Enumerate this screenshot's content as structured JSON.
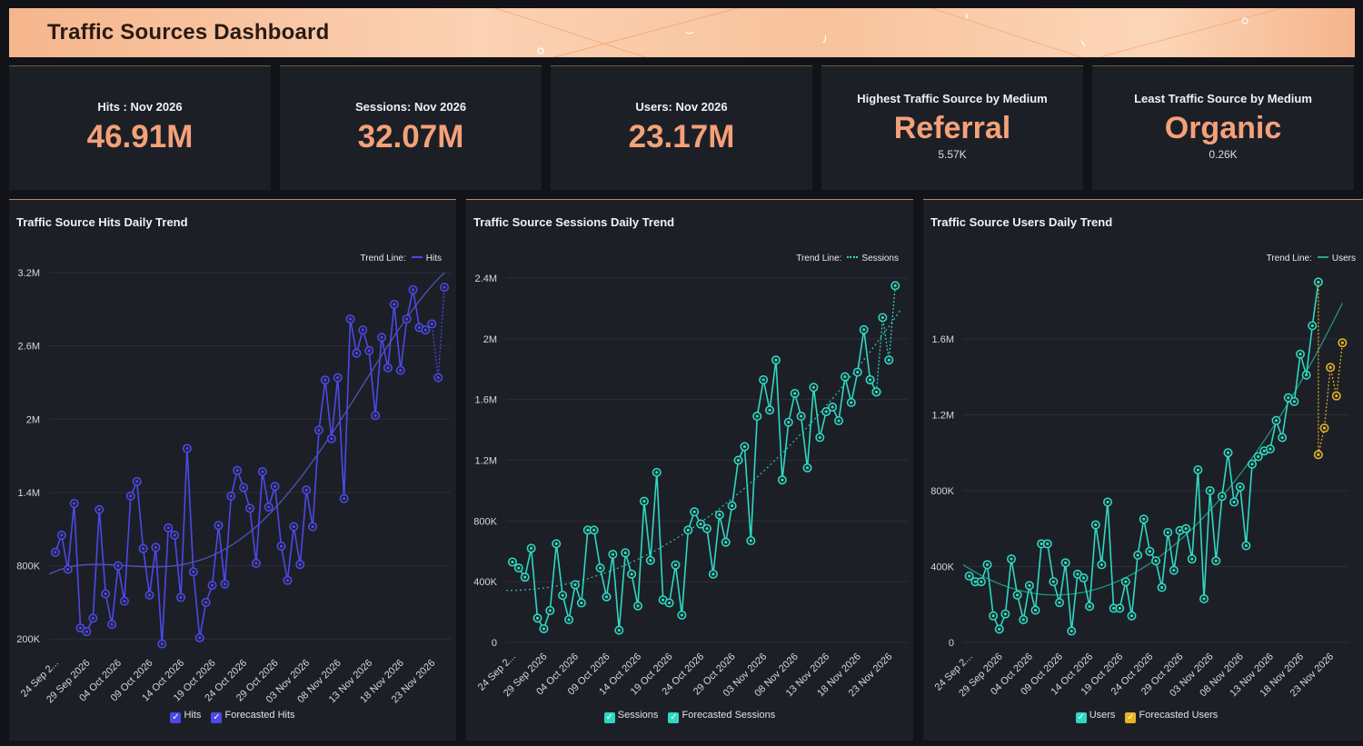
{
  "header": {
    "title": "Traffic Sources Dashboard"
  },
  "kpis": [
    {
      "label": "Hits : Nov 2026",
      "value": "46.91M"
    },
    {
      "label": "Sessions: Nov 2026",
      "value": "32.07M"
    },
    {
      "label": "Users: Nov 2026",
      "value": "23.17M"
    },
    {
      "label": "Highest Traffic Source by Medium",
      "value": "Referral",
      "sub": "5.57K"
    },
    {
      "label": "Least Traffic Source by Medium",
      "value": "Organic",
      "sub": "0.26K"
    }
  ],
  "colors": {
    "accent": "#f4a178",
    "hits": "#4b49e8",
    "sessions": "#2ed8c0",
    "users": "#2ed8c0",
    "forecast_users": "#e8b422",
    "users_trend": "#1fa98f",
    "background": "#121318",
    "panel": "#1d1f27",
    "grid": "#2b2e38"
  },
  "panels": [
    {
      "title": "Traffic Source Hits Daily Trend",
      "trend_line_label": "Trend Line:",
      "trend_series_label": "Hits",
      "legend": [
        "Hits",
        "Forecasted Hits"
      ]
    },
    {
      "title": "Traffic Source Sessions Daily Trend",
      "trend_line_label": "Trend Line:",
      "trend_series_label": "Sessions",
      "legend": [
        "Sessions",
        "Forecasted Sessions"
      ]
    },
    {
      "title": "Traffic Source Users Daily Trend",
      "trend_line_label": "Trend Line:",
      "trend_series_label": "Users",
      "legend": [
        "Users",
        "Forecasted Users"
      ]
    }
  ],
  "chart_data": [
    {
      "type": "line",
      "title": "Traffic Source Hits Daily Trend",
      "x_tick_labels": [
        "24 Sep 2...",
        "29 Sep 2026",
        "04 Oct 2026",
        "09 Oct 2026",
        "14 Oct 2026",
        "19 Oct 2026",
        "24 Oct 2026",
        "29 Oct 2026",
        "03 Nov 2026",
        "08 Nov 2026",
        "13 Nov 2026",
        "18 Nov 2026",
        "23 Nov 2026"
      ],
      "y_ticks": [
        "200K",
        "800K",
        "1.4M",
        "2M",
        "2.6M",
        "3.2M"
      ],
      "y_tick_values": [
        200000,
        800000,
        1400000,
        2000000,
        2600000,
        3200000
      ],
      "ylim": [
        120000,
        3200000
      ],
      "x_start": "2026-09-24",
      "x_end": "2026-11-27",
      "series": [
        {
          "name": "Hits",
          "dates": [
            "2026-09-25",
            "2026-09-26",
            "2026-09-27",
            "2026-09-28",
            "2026-09-29",
            "2026-09-30",
            "2026-10-01",
            "2026-10-02",
            "2026-10-03",
            "2026-10-04",
            "2026-10-05",
            "2026-10-06",
            "2026-10-07",
            "2026-10-08",
            "2026-10-09",
            "2026-10-10",
            "2026-10-11",
            "2026-10-12",
            "2026-10-13",
            "2026-10-14",
            "2026-10-15",
            "2026-10-16",
            "2026-10-17",
            "2026-10-18",
            "2026-10-19",
            "2026-10-20",
            "2026-10-21",
            "2026-10-22",
            "2026-10-23",
            "2026-10-24",
            "2026-10-25",
            "2026-10-26",
            "2026-10-27",
            "2026-10-28",
            "2026-10-29",
            "2026-10-30",
            "2026-10-31",
            "2026-11-01",
            "2026-11-02",
            "2026-11-03",
            "2026-11-04",
            "2026-11-05",
            "2026-11-06",
            "2026-11-07",
            "2026-11-08",
            "2026-11-09",
            "2026-11-10",
            "2026-11-11",
            "2026-11-12",
            "2026-11-13",
            "2026-11-14",
            "2026-11-15",
            "2026-11-16",
            "2026-11-17",
            "2026-11-18",
            "2026-11-19",
            "2026-11-20",
            "2026-11-21",
            "2026-11-22"
          ],
          "values": [
            910000,
            1050000,
            770000,
            1310000,
            290000,
            260000,
            370000,
            1260000,
            570000,
            320000,
            800000,
            510000,
            1370000,
            1490000,
            940000,
            560000,
            950000,
            160000,
            1110000,
            1050000,
            540000,
            1760000,
            750000,
            210000,
            500000,
            640000,
            1130000,
            650000,
            1370000,
            1580000,
            1440000,
            1270000,
            820000,
            1570000,
            1280000,
            1450000,
            960000,
            680000,
            1120000,
            810000,
            1420000,
            1120000,
            1910000,
            2320000,
            1840000,
            2340000,
            1350000,
            2820000,
            2540000,
            2730000,
            2560000,
            2030000,
            2670000,
            2420000,
            2940000,
            2400000,
            2820000,
            3060000,
            2750000
          ]
        },
        {
          "name": "Forecasted Hits",
          "dates": [
            "2026-11-22",
            "2026-11-23",
            "2026-11-24",
            "2026-11-25",
            "2026-11-26"
          ],
          "values": [
            2750000,
            2730000,
            2780000,
            2340000,
            3080000
          ]
        }
      ],
      "trend_line": "Hits"
    },
    {
      "type": "line",
      "title": "Traffic Source Sessions Daily Trend",
      "x_tick_labels": [
        "24 Sep 2...",
        "29 Sep 2026",
        "04 Oct 2026",
        "09 Oct 2026",
        "14 Oct 2026",
        "19 Oct 2026",
        "24 Oct 2026",
        "29 Oct 2026",
        "03 Nov 2026",
        "08 Nov 2026",
        "13 Nov 2026",
        "18 Nov 2026",
        "23 Nov 2026"
      ],
      "y_ticks": [
        "0",
        "400K",
        "800K",
        "1.2M",
        "1.6M",
        "2M",
        "2.4M"
      ],
      "y_tick_values": [
        0,
        400000,
        800000,
        1200000,
        1600000,
        2000000,
        2400000
      ],
      "ylim": [
        0,
        2400000
      ],
      "x_start": "2026-09-24",
      "x_end": "2026-11-27",
      "series": [
        {
          "name": "Sessions",
          "dates": [
            "2026-09-25",
            "2026-09-26",
            "2026-09-27",
            "2026-09-28",
            "2026-09-29",
            "2026-09-30",
            "2026-10-01",
            "2026-10-02",
            "2026-10-03",
            "2026-10-04",
            "2026-10-05",
            "2026-10-06",
            "2026-10-07",
            "2026-10-08",
            "2026-10-09",
            "2026-10-10",
            "2026-10-11",
            "2026-10-12",
            "2026-10-13",
            "2026-10-14",
            "2026-10-15",
            "2026-10-16",
            "2026-10-17",
            "2026-10-18",
            "2026-10-19",
            "2026-10-20",
            "2026-10-21",
            "2026-10-22",
            "2026-10-23",
            "2026-10-24",
            "2026-10-25",
            "2026-10-26",
            "2026-10-27",
            "2026-10-28",
            "2026-10-29",
            "2026-10-30",
            "2026-10-31",
            "2026-11-01",
            "2026-11-02",
            "2026-11-03",
            "2026-11-04",
            "2026-11-05",
            "2026-11-06",
            "2026-11-07",
            "2026-11-08",
            "2026-11-09",
            "2026-11-10",
            "2026-11-11",
            "2026-11-12",
            "2026-11-13",
            "2026-11-14",
            "2026-11-15",
            "2026-11-16",
            "2026-11-17",
            "2026-11-18",
            "2026-11-19",
            "2026-11-20",
            "2026-11-21",
            "2026-11-22"
          ],
          "values": [
            530000,
            490000,
            430000,
            620000,
            160000,
            90000,
            210000,
            650000,
            310000,
            150000,
            380000,
            260000,
            740000,
            740000,
            490000,
            300000,
            580000,
            80000,
            590000,
            450000,
            240000,
            930000,
            540000,
            1120000,
            280000,
            260000,
            510000,
            180000,
            740000,
            860000,
            780000,
            750000,
            450000,
            840000,
            660000,
            900000,
            1200000,
            1290000,
            670000,
            1490000,
            1730000,
            1530000,
            1860000,
            1070000,
            1450000,
            1640000,
            1490000,
            1150000,
            1680000,
            1350000,
            1520000,
            1550000,
            1460000,
            1750000,
            1580000,
            1780000,
            2060000,
            1730000,
            1650000
          ]
        },
        {
          "name": "Forecasted Sessions",
          "dates": [
            "2026-11-21",
            "2026-11-22",
            "2026-11-23",
            "2026-11-24",
            "2026-11-25"
          ],
          "values": [
            1730000,
            1650000,
            2140000,
            1860000,
            2350000
          ]
        }
      ],
      "trend_line": "Sessions"
    },
    {
      "type": "line",
      "title": "Traffic Source Users Daily Trend",
      "x_tick_labels": [
        "24 Sep 2...",
        "29 Sep 2026",
        "04 Oct 2026",
        "09 Oct 2026",
        "14 Oct 2026",
        "19 Oct 2026",
        "24 Oct 2026",
        "29 Oct 2026",
        "03 Nov 2026",
        "08 Nov 2026",
        "13 Nov 2026",
        "18 Nov 2026",
        "23 Nov 2026"
      ],
      "y_ticks": [
        "0",
        "400K",
        "800K",
        "1.2M",
        "1.6M"
      ],
      "y_tick_values": [
        0,
        400000,
        800000,
        1200000,
        1600000
      ],
      "ylim": [
        0,
        1950000
      ],
      "x_start": "2026-09-24",
      "x_end": "2026-11-27",
      "series": [
        {
          "name": "Users",
          "dates": [
            "2026-09-25",
            "2026-09-26",
            "2026-09-27",
            "2026-09-28",
            "2026-09-29",
            "2026-09-30",
            "2026-10-01",
            "2026-10-02",
            "2026-10-03",
            "2026-10-04",
            "2026-10-05",
            "2026-10-06",
            "2026-10-07",
            "2026-10-08",
            "2026-10-09",
            "2026-10-10",
            "2026-10-11",
            "2026-10-12",
            "2026-10-13",
            "2026-10-14",
            "2026-10-15",
            "2026-10-16",
            "2026-10-17",
            "2026-10-18",
            "2026-10-19",
            "2026-10-20",
            "2026-10-21",
            "2026-10-22",
            "2026-10-23",
            "2026-10-24",
            "2026-10-25",
            "2026-10-26",
            "2026-10-27",
            "2026-10-28",
            "2026-10-29",
            "2026-10-30",
            "2026-10-31",
            "2026-11-01",
            "2026-11-02",
            "2026-11-03",
            "2026-11-04",
            "2026-11-05",
            "2026-11-06",
            "2026-11-07",
            "2026-11-08",
            "2026-11-09",
            "2026-11-10",
            "2026-11-11",
            "2026-11-12",
            "2026-11-13",
            "2026-11-14",
            "2026-11-15",
            "2026-11-16",
            "2026-11-17",
            "2026-11-18",
            "2026-11-19",
            "2026-11-20"
          ],
          "values": [
            350000,
            320000,
            320000,
            410000,
            140000,
            70000,
            150000,
            440000,
            250000,
            120000,
            300000,
            170000,
            520000,
            520000,
            320000,
            210000,
            420000,
            60000,
            360000,
            340000,
            190000,
            620000,
            410000,
            740000,
            180000,
            180000,
            320000,
            140000,
            460000,
            650000,
            480000,
            430000,
            290000,
            580000,
            380000,
            590000,
            600000,
            440000,
            910000,
            230000,
            800000,
            430000,
            770000,
            1000000,
            740000,
            820000,
            510000,
            940000,
            980000,
            1010000,
            1020000,
            1170000,
            1080000,
            1290000,
            1270000,
            1520000,
            1410000
          ]
        },
        {
          "name": "Forecasted Users",
          "dates": [
            "2026-11-22",
            "2026-11-23",
            "2026-11-24",
            "2026-11-25",
            "2026-11-26"
          ],
          "values": [
            990000,
            1130000,
            1450000,
            1300000,
            1580000
          ]
        }
      ],
      "extra_users_points": {
        "dates": [
          "2026-11-21",
          "2026-11-22"
        ],
        "values": [
          1670000,
          1900000
        ]
      },
      "trend_line": "Users"
    }
  ]
}
